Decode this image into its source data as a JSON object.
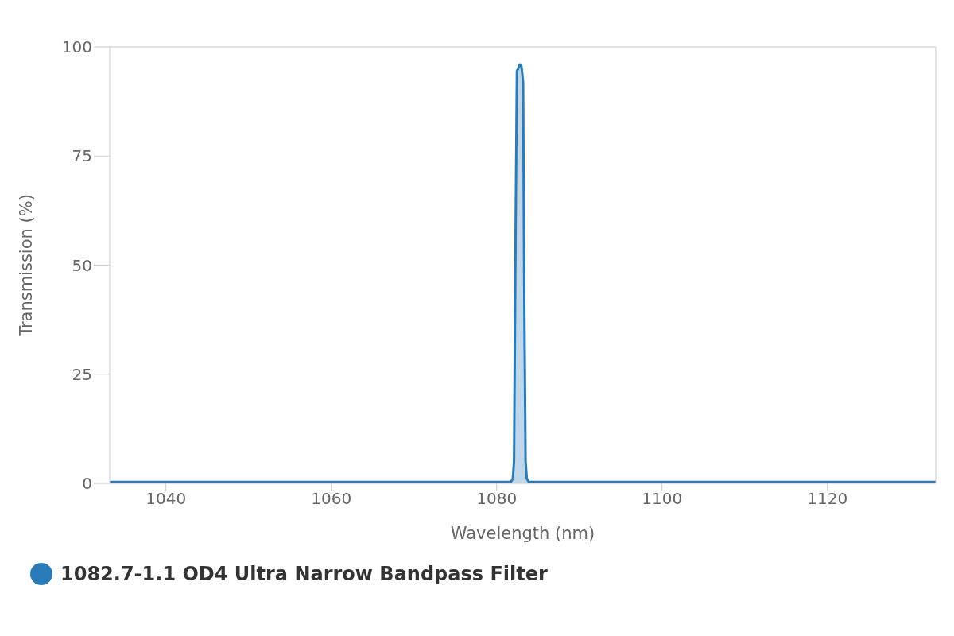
{
  "chart_data": {
    "type": "area",
    "xlabel": "Wavelength (nm)",
    "ylabel": "Transmission (%)",
    "series": [
      {
        "name": "1082.7-1.1 OD4 Ultra Narrow Bandpass Filter",
        "color": "#2b7bb9",
        "x": [
          1033.2,
          1081.7,
          1081.95,
          1082.1,
          1082.3,
          1082.45,
          1082.6,
          1082.8,
          1083.0,
          1083.2,
          1083.35,
          1083.5,
          1083.65,
          1083.9,
          1133.1
        ],
        "values": [
          0.3,
          0.3,
          1,
          5,
          60,
          94.5,
          95,
          96,
          95.5,
          92,
          40,
          5,
          1,
          0.3,
          0.3
        ]
      }
    ],
    "xlim": [
      1033.2,
      1133.1
    ],
    "xticks": [
      1040,
      1060,
      1080,
      1100,
      1120
    ],
    "ylim": [
      0,
      100
    ],
    "yticks": [
      0,
      25,
      50,
      75,
      100
    ],
    "grid": false,
    "legend": "bottom left",
    "marker": "none",
    "line_style": "solid"
  }
}
